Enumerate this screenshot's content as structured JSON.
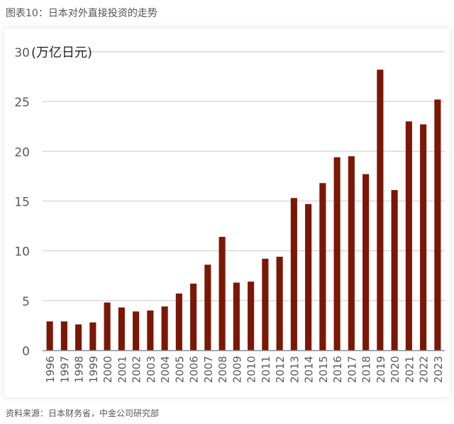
{
  "figure_title": "图表10：日本对外直接投资的走势",
  "source": "资料来源：日本财务省，中金公司研究部",
  "colors": {
    "bar": "#7b1706",
    "grid": "#d9d9d9",
    "axis": "#8c8c8c",
    "text": "#595959"
  },
  "chart_data": {
    "type": "bar",
    "ylabel": "(万亿日元)",
    "ylim": [
      0,
      30
    ],
    "yticks": [
      0,
      5,
      10,
      15,
      20,
      25,
      30
    ],
    "grid": true,
    "categories": [
      "1996",
      "1997",
      "1998",
      "1999",
      "2000",
      "2001",
      "2002",
      "2003",
      "2004",
      "2005",
      "2006",
      "2007",
      "2008",
      "2009",
      "2010",
      "2011",
      "2012",
      "2013",
      "2014",
      "2015",
      "2016",
      "2017",
      "2018",
      "2019",
      "2020",
      "2021",
      "2022",
      "2023"
    ],
    "values": [
      2.9,
      2.9,
      2.6,
      2.8,
      4.8,
      4.3,
      3.9,
      4.0,
      4.4,
      5.7,
      6.7,
      8.6,
      11.4,
      6.8,
      6.9,
      9.2,
      9.4,
      15.3,
      14.7,
      16.8,
      19.4,
      19.5,
      17.7,
      28.2,
      16.1,
      23.0,
      22.7,
      25.2
    ]
  }
}
